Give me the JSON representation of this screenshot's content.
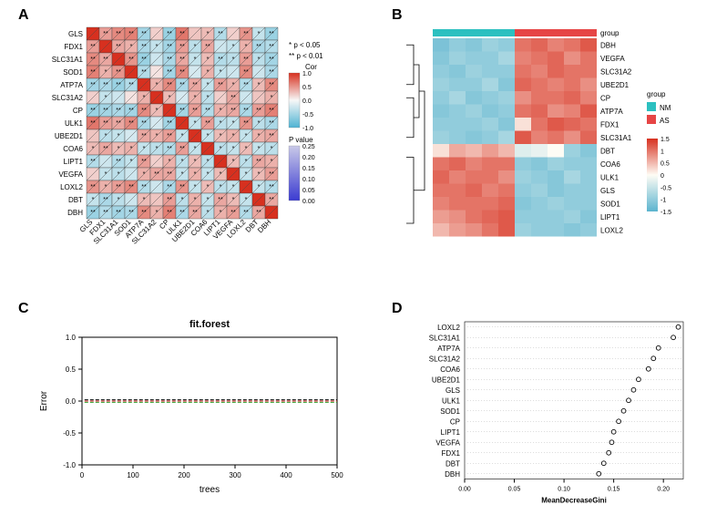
{
  "labels": {
    "A": "A",
    "B": "B",
    "C": "C",
    "D": "D"
  },
  "panelA": {
    "type": "correlation-matrix",
    "genes": [
      "GLS",
      "FDX1",
      "SLC31A1",
      "SOD1",
      "ATP7A",
      "SLC31A2",
      "CP",
      "ULK1",
      "UBE2D1",
      "COA6",
      "LIPT1",
      "VEGFA",
      "LOXL2",
      "DBT",
      "DBH"
    ],
    "sig_note1": "* p < 0.05",
    "sig_note2": "** p < 0.01",
    "cor_legend_title": "Cor",
    "cor_ticks": [
      "1.0",
      "0.5",
      "0.0",
      "-0.5",
      "-1.0"
    ],
    "pval_legend_title": "P value",
    "pval_ticks": [
      "0.25",
      "0.20",
      "0.15",
      "0.10",
      "0.05",
      "0.00"
    ],
    "cor_colors_pos": "#d7301f",
    "cor_colors_neg": "#4eb3d3",
    "cor_colors_mid": "#f7f7f7",
    "grid_stroke": "#444",
    "label_fontsize": 8,
    "star_fontsize": 7,
    "cor_matrix": [
      [
        1.0,
        0.45,
        0.55,
        0.6,
        -0.5,
        0.2,
        -0.55,
        0.65,
        0.25,
        0.3,
        -0.4,
        0.2,
        0.5,
        -0.3,
        -0.55
      ],
      [
        0.45,
        1.0,
        0.4,
        0.35,
        -0.45,
        -0.3,
        -0.5,
        0.45,
        -0.35,
        0.4,
        -0.25,
        -0.3,
        0.35,
        -0.45,
        -0.4
      ],
      [
        0.55,
        0.4,
        1.0,
        0.5,
        -0.55,
        -0.25,
        -0.45,
        0.4,
        -0.3,
        0.3,
        -0.4,
        -0.35,
        0.45,
        -0.35,
        -0.5
      ],
      [
        0.6,
        0.35,
        0.5,
        1.0,
        -0.4,
        0.1,
        -0.5,
        0.55,
        -0.2,
        0.35,
        -0.3,
        -0.25,
        0.55,
        -0.25,
        -0.45
      ],
      [
        -0.5,
        -0.45,
        -0.55,
        -0.4,
        1.0,
        0.35,
        0.55,
        -0.45,
        0.4,
        -0.3,
        0.45,
        0.35,
        -0.4,
        0.3,
        0.55
      ],
      [
        0.2,
        -0.3,
        -0.25,
        0.1,
        0.35,
        1.0,
        0.3,
        -0.2,
        0.35,
        -0.35,
        0.2,
        0.4,
        -0.25,
        0.25,
        0.35
      ],
      [
        -0.55,
        -0.5,
        -0.45,
        -0.5,
        0.55,
        0.3,
        1.0,
        -0.5,
        0.45,
        -0.4,
        0.35,
        0.4,
        -0.45,
        0.45,
        0.6
      ],
      [
        0.65,
        0.45,
        0.4,
        0.55,
        -0.45,
        -0.2,
        -0.5,
        1.0,
        -0.3,
        0.45,
        -0.35,
        -0.3,
        0.5,
        -0.35,
        -0.45
      ],
      [
        0.25,
        -0.35,
        -0.3,
        -0.2,
        0.4,
        0.35,
        0.45,
        -0.3,
        1.0,
        -0.3,
        0.3,
        0.35,
        -0.3,
        0.35,
        0.4
      ],
      [
        0.3,
        0.4,
        0.3,
        0.35,
        -0.3,
        -0.35,
        -0.4,
        0.45,
        -0.3,
        1.0,
        -0.35,
        -0.3,
        0.3,
        -0.3,
        -0.35
      ],
      [
        -0.4,
        -0.25,
        -0.4,
        -0.3,
        0.45,
        0.2,
        0.35,
        -0.35,
        0.3,
        -0.35,
        1.0,
        0.3,
        -0.35,
        0.4,
        0.35
      ],
      [
        0.2,
        -0.3,
        -0.35,
        -0.25,
        0.35,
        0.4,
        0.4,
        -0.3,
        0.35,
        -0.3,
        0.3,
        1.0,
        -0.3,
        0.3,
        0.45
      ],
      [
        0.5,
        0.35,
        0.45,
        0.55,
        -0.4,
        -0.25,
        -0.45,
        0.5,
        -0.3,
        0.3,
        -0.35,
        -0.3,
        1.0,
        -0.3,
        -0.4
      ],
      [
        -0.3,
        -0.45,
        -0.35,
        -0.25,
        0.3,
        0.25,
        0.45,
        -0.35,
        0.35,
        -0.3,
        0.4,
        0.3,
        -0.3,
        1.0,
        0.4
      ],
      [
        -0.55,
        -0.4,
        -0.5,
        -0.45,
        0.55,
        0.35,
        0.6,
        -0.45,
        0.4,
        -0.35,
        0.35,
        0.45,
        -0.4,
        0.4,
        1.0
      ]
    ],
    "sig_matrix": [
      [
        "",
        "**",
        "**",
        "**",
        "**",
        "",
        "**",
        "**",
        "",
        "*",
        "**",
        "",
        "**",
        "*",
        "**"
      ],
      [
        "**",
        "",
        "**",
        "*",
        "**",
        "*",
        "**",
        "**",
        "*",
        "**",
        "",
        "*",
        "*",
        "**",
        "**"
      ],
      [
        "**",
        "**",
        "",
        "**",
        "**",
        "",
        "**",
        "**",
        "*",
        "*",
        "**",
        "*",
        "**",
        "*",
        "**"
      ],
      [
        "**",
        "*",
        "**",
        "",
        "**",
        "",
        "**",
        "**",
        "",
        "*",
        "*",
        "",
        "**",
        "",
        "**"
      ],
      [
        "**",
        "**",
        "**",
        "**",
        "",
        "*",
        "**",
        "**",
        "**",
        "*",
        "**",
        "*",
        "**",
        "*",
        "**"
      ],
      [
        "",
        "*",
        "",
        "",
        "*",
        "",
        "*",
        "",
        "*",
        "*",
        "",
        "**",
        "",
        "",
        "*"
      ],
      [
        "**",
        "**",
        "**",
        "**",
        "**",
        "*",
        "",
        "**",
        "**",
        "**",
        "*",
        "**",
        "**",
        "**",
        "**"
      ],
      [
        "**",
        "**",
        "**",
        "**",
        "**",
        "",
        "**",
        "",
        "*",
        "**",
        "*",
        "*",
        "**",
        "*",
        "**"
      ],
      [
        "",
        "*",
        "*",
        "",
        "**",
        "*",
        "**",
        "*",
        "",
        "*",
        "*",
        "*",
        "*",
        "*",
        "**"
      ],
      [
        "*",
        "**",
        "*",
        "*",
        "*",
        "*",
        "**",
        "**",
        "*",
        "",
        "*",
        "*",
        "*",
        "*",
        "*"
      ],
      [
        "**",
        "",
        "**",
        "*",
        "**",
        "",
        "*",
        "*",
        "*",
        "*",
        "",
        "*",
        "*",
        "**",
        "*"
      ],
      [
        "",
        "*",
        "*",
        "",
        "*",
        "**",
        "**",
        "*",
        "*",
        "*",
        "*",
        "",
        "*",
        "*",
        "**"
      ],
      [
        "**",
        "*",
        "**",
        "**",
        "**",
        "",
        "**",
        "**",
        "*",
        "*",
        "*",
        "*",
        "",
        "*",
        "**"
      ],
      [
        "*",
        "**",
        "*",
        "",
        "*",
        "",
        "**",
        "*",
        "*",
        "*",
        "**",
        "*",
        "*",
        "",
        "**"
      ],
      [
        "**",
        "**",
        "**",
        "**",
        "**",
        "*",
        "**",
        "**",
        "**",
        "*",
        "*",
        "**",
        "**",
        "**",
        ""
      ]
    ]
  },
  "panelB": {
    "type": "heatmap",
    "row_genes": [
      "DBH",
      "VEGFA",
      "SLC31A2",
      "UBE2D1",
      "CP",
      "ATP7A",
      "FDX1",
      "SLC31A1",
      "DBT",
      "COA6",
      "ULK1",
      "GLS",
      "SOD1",
      "LIPT1",
      "LOXL2"
    ],
    "n_samples": 10,
    "group_split": 5,
    "group_header_label": "group",
    "groups": {
      "NM": "#2cc0c0",
      "AS": "#e64545"
    },
    "legend_title": "group",
    "scale_ticks": [
      "1.5",
      "1",
      "0.5",
      "0",
      "-0.5",
      "-1",
      "-1.5"
    ],
    "color_pos": "#d7301f",
    "color_neg": "#5bb4cf",
    "color_mid": "#fefcf5",
    "label_fontsize": 8,
    "value_matrix": [
      [
        -1.2,
        -1.0,
        -1.1,
        -0.9,
        -1.0,
        1.0,
        1.1,
        0.9,
        1.0,
        1.2
      ],
      [
        -1.1,
        -0.9,
        -1.0,
        -1.0,
        -0.8,
        0.9,
        1.0,
        1.1,
        0.8,
        1.0
      ],
      [
        -1.0,
        -1.1,
        -0.9,
        -1.0,
        -1.0,
        1.0,
        0.9,
        1.1,
        1.0,
        1.0
      ],
      [
        -0.9,
        -1.0,
        -1.0,
        -0.8,
        -1.1,
        1.1,
        1.0,
        0.9,
        1.0,
        0.8
      ],
      [
        -1.0,
        -0.8,
        -1.1,
        -1.0,
        -0.9,
        0.8,
        1.0,
        1.0,
        1.1,
        0.9
      ],
      [
        -1.1,
        -1.0,
        -0.9,
        -1.1,
        -1.0,
        1.0,
        1.1,
        0.8,
        0.9,
        1.2
      ],
      [
        -1.0,
        -1.0,
        -1.0,
        -0.9,
        -1.1,
        0.2,
        1.0,
        1.2,
        1.1,
        1.0
      ],
      [
        -0.9,
        -1.0,
        -1.1,
        -1.0,
        -0.8,
        1.2,
        0.9,
        1.0,
        0.8,
        1.1
      ],
      [
        0.2,
        0.6,
        0.5,
        0.7,
        0.5,
        -0.3,
        -0.2,
        0.0,
        -0.9,
        -1.1
      ],
      [
        1.0,
        1.1,
        0.9,
        1.0,
        1.0,
        -1.0,
        -1.1,
        -0.9,
        -1.0,
        -1.0
      ],
      [
        1.1,
        0.9,
        1.0,
        1.0,
        0.8,
        -0.9,
        -1.0,
        -1.1,
        -0.8,
        -1.0
      ],
      [
        1.0,
        1.0,
        1.1,
        0.9,
        1.0,
        -1.0,
        -0.9,
        -1.1,
        -1.0,
        -1.0
      ],
      [
        0.9,
        1.0,
        1.0,
        1.0,
        1.1,
        -1.1,
        -1.0,
        -0.9,
        -1.0,
        -1.0
      ],
      [
        0.7,
        0.8,
        1.0,
        1.1,
        1.2,
        -1.0,
        -1.0,
        -1.0,
        -0.9,
        -1.1
      ],
      [
        0.5,
        0.7,
        0.8,
        1.0,
        1.2,
        -0.9,
        -1.0,
        -1.0,
        -1.1,
        -1.0
      ]
    ]
  },
  "panelC": {
    "type": "line",
    "title": "fit.forest",
    "xlabel": "trees",
    "ylabel": "Error",
    "xlim": [
      0,
      500
    ],
    "ylim": [
      -1.0,
      1.0
    ],
    "xticks": [
      0,
      100,
      200,
      300,
      400,
      500
    ],
    "yticks": [
      -1.0,
      -0.5,
      0.0,
      0.5,
      1.0
    ],
    "series": [
      {
        "color": "#000000",
        "dash": "4 2",
        "y": 0.02
      },
      {
        "color": "#d62728",
        "dash": "4 2",
        "y": 0.0
      },
      {
        "color": "#2ca02c",
        "dash": "4 2",
        "y": -0.02
      }
    ],
    "axis_color": "#000",
    "label_fontsize": 10,
    "tick_fontsize": 8,
    "title_fontsize": 11
  },
  "panelD": {
    "type": "dotplot",
    "xlabel": "MeanDecreaseGini",
    "xlim": [
      0.0,
      0.22
    ],
    "xticks": [
      "0.00",
      "0.05",
      "0.10",
      "0.15",
      "0.20"
    ],
    "items": [
      {
        "label": "LOXL2",
        "value": 0.215
      },
      {
        "label": "SLC31A1",
        "value": 0.21
      },
      {
        "label": "ATP7A",
        "value": 0.195
      },
      {
        "label": "SLC31A2",
        "value": 0.19
      },
      {
        "label": "COA6",
        "value": 0.185
      },
      {
        "label": "UBE2D1",
        "value": 0.175
      },
      {
        "label": "GLS",
        "value": 0.17
      },
      {
        "label": "ULK1",
        "value": 0.165
      },
      {
        "label": "SOD1",
        "value": 0.16
      },
      {
        "label": "CP",
        "value": 0.155
      },
      {
        "label": "LIPT1",
        "value": 0.15
      },
      {
        "label": "VEGFA",
        "value": 0.148
      },
      {
        "label": "FDX1",
        "value": 0.145
      },
      {
        "label": "DBT",
        "value": 0.14
      },
      {
        "label": "DBH",
        "value": 0.135
      }
    ],
    "grid_color": "#bbb",
    "point_color": "#000",
    "label_fontsize": 8,
    "tick_fontsize": 7
  }
}
